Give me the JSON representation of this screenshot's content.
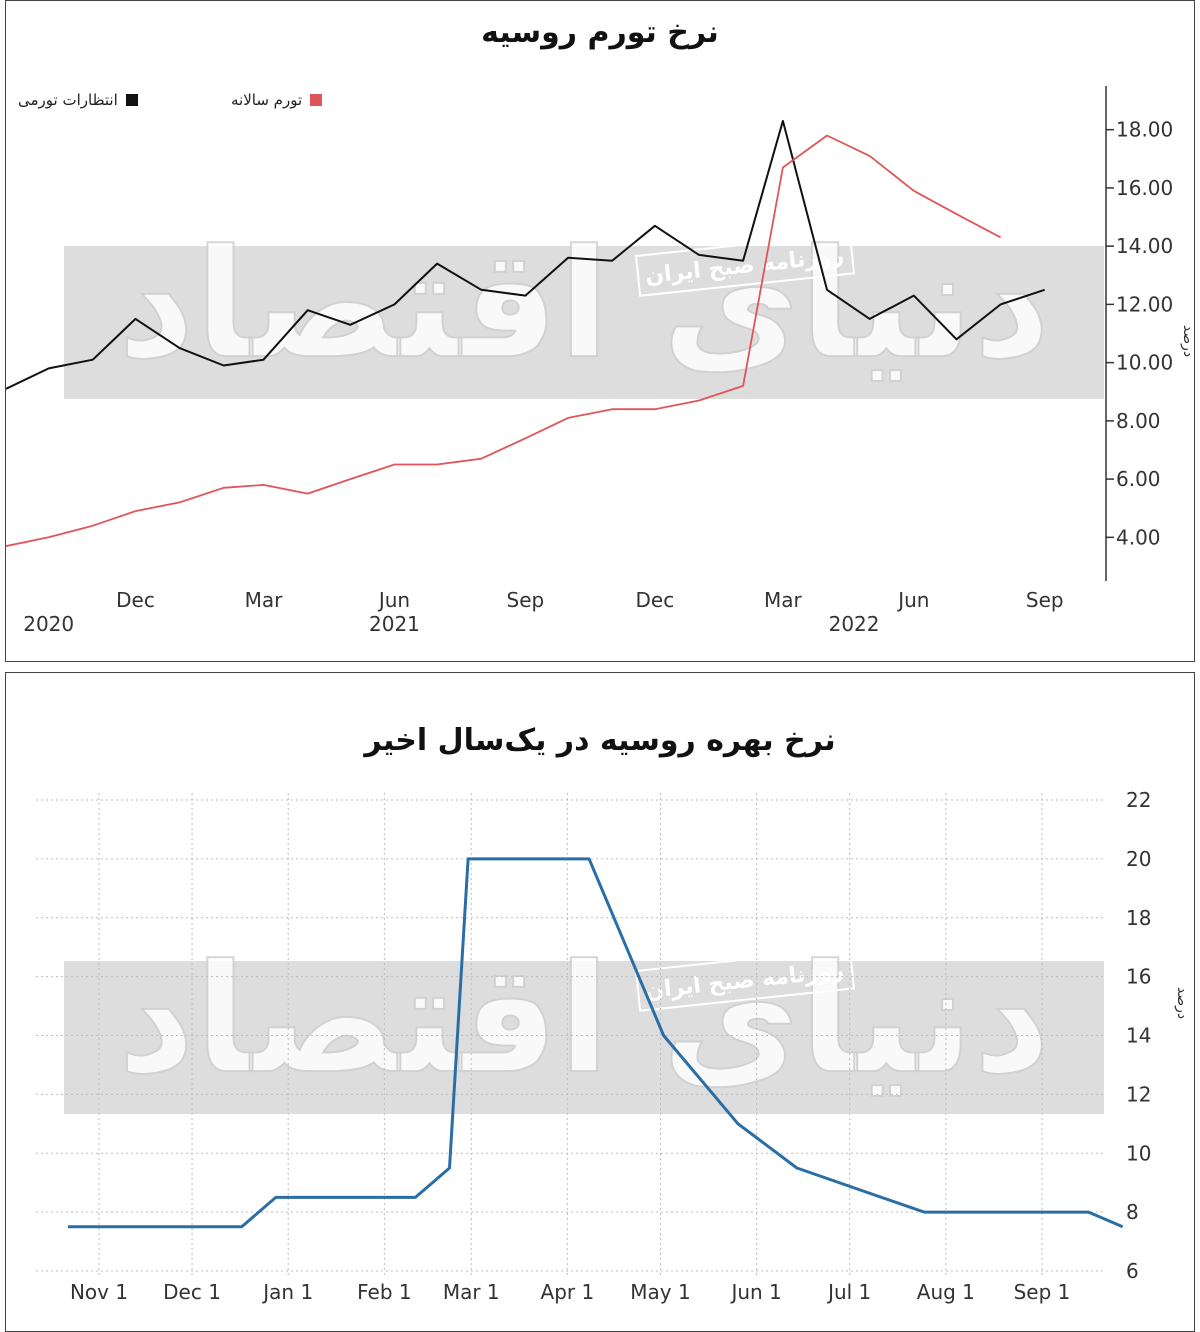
{
  "charts": {
    "inflation": {
      "title": "نرخ تورم روسیه",
      "ylabel": "درصد",
      "legend": [
        {
          "label": "انتظارات تورمی",
          "color": "#111111"
        },
        {
          "label": "تورم سالانه",
          "color": "#e0555a"
        }
      ]
    },
    "rate": {
      "title": "نرخ بهره روسیه در یک‌سال اخیر",
      "ylabel": "درصد"
    }
  },
  "watermark": {
    "brand": "دنیای اقتصاد",
    "tagline": "روزنامه صبح ایران"
  },
  "chart_data": [
    {
      "type": "line",
      "title": "نرخ تورم روسیه",
      "ylabel": "درصد",
      "xlabel": "",
      "ylim": [
        2.5,
        19.5
      ],
      "xlim": [
        "2020-09-01",
        "2022-09-30"
      ],
      "y_ticks": [
        "4.00",
        "6.00",
        "8.00",
        "10.00",
        "12.00",
        "14.00",
        "16.00",
        "18.00"
      ],
      "x_ticks": [
        {
          "date": "2020-12-01",
          "label": "Dec"
        },
        {
          "date": "2021-03-01",
          "label": "Mar"
        },
        {
          "date": "2021-06-01",
          "label": "Jun"
        },
        {
          "date": "2021-09-01",
          "label": "Sep"
        },
        {
          "date": "2021-12-01",
          "label": "Dec"
        },
        {
          "date": "2022-03-01",
          "label": "Mar"
        },
        {
          "date": "2022-06-01",
          "label": "Jun"
        },
        {
          "date": "2022-09-01",
          "label": "Sep"
        }
      ],
      "year_labels": [
        {
          "date": "2020-10-01",
          "label": "2020"
        },
        {
          "date": "2021-06-01",
          "label": "2021"
        },
        {
          "date": "2022-04-20",
          "label": "2022"
        }
      ],
      "legend_position": "top-left",
      "grid": false,
      "series": [
        {
          "name": "انتظارات تورمی",
          "color": "#111111",
          "points": [
            [
              "2020-09-01",
              9.1
            ],
            [
              "2020-10-01",
              9.8
            ],
            [
              "2020-11-01",
              10.1
            ],
            [
              "2020-12-01",
              11.5
            ],
            [
              "2021-01-01",
              10.5
            ],
            [
              "2021-02-01",
              9.9
            ],
            [
              "2021-03-01",
              10.1
            ],
            [
              "2021-04-01",
              11.8
            ],
            [
              "2021-05-01",
              11.3
            ],
            [
              "2021-06-01",
              12.0
            ],
            [
              "2021-07-01",
              13.4
            ],
            [
              "2021-08-01",
              12.5
            ],
            [
              "2021-09-01",
              12.3
            ],
            [
              "2021-10-01",
              13.6
            ],
            [
              "2021-11-01",
              13.5
            ],
            [
              "2021-12-01",
              14.7
            ],
            [
              "2022-01-01",
              13.7
            ],
            [
              "2022-02-01",
              13.5
            ],
            [
              "2022-03-01",
              18.3
            ],
            [
              "2022-04-01",
              12.5
            ],
            [
              "2022-05-01",
              11.5
            ],
            [
              "2022-06-01",
              12.3
            ],
            [
              "2022-07-01",
              10.8
            ],
            [
              "2022-08-01",
              12.0
            ],
            [
              "2022-09-01",
              12.5
            ]
          ]
        },
        {
          "name": "تورم سالانه",
          "color": "#e0555a",
          "points": [
            [
              "2020-09-01",
              3.7
            ],
            [
              "2020-10-01",
              4.0
            ],
            [
              "2020-11-01",
              4.4
            ],
            [
              "2020-12-01",
              4.9
            ],
            [
              "2021-01-01",
              5.2
            ],
            [
              "2021-02-01",
              5.7
            ],
            [
              "2021-03-01",
              5.8
            ],
            [
              "2021-04-01",
              5.5
            ],
            [
              "2021-05-01",
              6.0
            ],
            [
              "2021-06-01",
              6.5
            ],
            [
              "2021-07-01",
              6.5
            ],
            [
              "2021-08-01",
              6.7
            ],
            [
              "2021-09-01",
              7.4
            ],
            [
              "2021-10-01",
              8.1
            ],
            [
              "2021-11-01",
              8.4
            ],
            [
              "2021-12-01",
              8.4
            ],
            [
              "2022-01-01",
              8.7
            ],
            [
              "2022-02-01",
              9.2
            ],
            [
              "2022-03-01",
              16.7
            ],
            [
              "2022-04-01",
              17.8
            ],
            [
              "2022-05-01",
              17.1
            ],
            [
              "2022-06-01",
              15.9
            ],
            [
              "2022-07-01",
              15.1
            ],
            [
              "2022-08-01",
              14.3
            ]
          ]
        }
      ]
    },
    {
      "type": "line",
      "title": "نرخ بهره روسیه در یک‌سال اخیر",
      "ylabel": "درصد",
      "xlabel": "",
      "ylim": [
        6,
        22
      ],
      "xlim": [
        "2021-10-20",
        "2022-09-30"
      ],
      "y_ticks": [
        6,
        8,
        10,
        12,
        14,
        16,
        18,
        20,
        22
      ],
      "x_ticks": [
        {
          "date": "2021-11-01",
          "label": "Nov 1"
        },
        {
          "date": "2021-12-01",
          "label": "Dec 1"
        },
        {
          "date": "2022-01-01",
          "label": "Jan 1"
        },
        {
          "date": "2022-02-01",
          "label": "Feb 1"
        },
        {
          "date": "2022-03-01",
          "label": "Mar 1"
        },
        {
          "date": "2022-04-01",
          "label": "Apr 1"
        },
        {
          "date": "2022-05-01",
          "label": "May 1"
        },
        {
          "date": "2022-06-01",
          "label": "Jun 1"
        },
        {
          "date": "2022-07-01",
          "label": "Jul 1"
        },
        {
          "date": "2022-08-01",
          "label": "Aug 1"
        },
        {
          "date": "2022-09-01",
          "label": "Sep 1"
        }
      ],
      "grid": true,
      "series": [
        {
          "color": "#2a6ea6",
          "points": [
            [
              "2021-10-22",
              7.5
            ],
            [
              "2021-12-17",
              7.5
            ],
            [
              "2021-12-28",
              8.5
            ],
            [
              "2022-02-11",
              8.5
            ],
            [
              "2022-02-22",
              9.5
            ],
            [
              "2022-02-28",
              20.0
            ],
            [
              "2022-04-08",
              20.0
            ],
            [
              "2022-05-02",
              14.0
            ],
            [
              "2022-05-26",
              11.0
            ],
            [
              "2022-06-14",
              9.5
            ],
            [
              "2022-07-25",
              8.0
            ],
            [
              "2022-09-16",
              8.0
            ],
            [
              "2022-09-27",
              7.5
            ]
          ]
        }
      ]
    }
  ]
}
